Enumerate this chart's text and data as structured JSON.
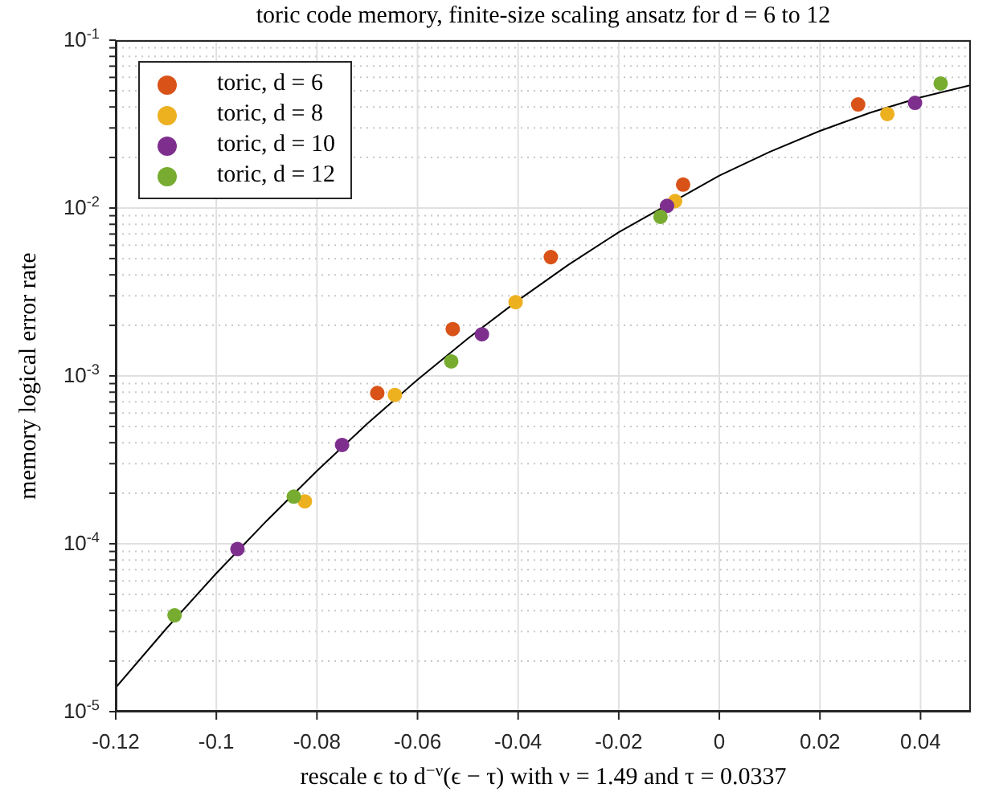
{
  "chart_data": {
    "type": "scatter",
    "title": "toric code memory, finite-size scaling ansatz for d = 6 to 12",
    "xlabel": "rescale ϵ to d$^{−ν}$(ϵ − τ) with ν = 1.49 and τ = 0.0337",
    "ylabel": "memory logical error rate",
    "xlim": [
      -0.12,
      0.05
    ],
    "xticks": [
      -0.12,
      -0.1,
      -0.08,
      -0.06,
      -0.04,
      -0.02,
      0,
      0.02,
      0.04
    ],
    "ylim": [
      1e-05,
      0.1
    ],
    "log": "y",
    "yticks": [
      {
        "value": 1e-05,
        "label": "10$^{-5}$"
      },
      {
        "value": 2e-05,
        "label": null
      },
      {
        "value": 3e-05,
        "label": null
      },
      {
        "value": 4e-05,
        "label": null
      },
      {
        "value": 5e-05,
        "label": null
      },
      {
        "value": 6e-05,
        "label": null
      },
      {
        "value": 7e-05,
        "label": null
      },
      {
        "value": 8e-05,
        "label": null
      },
      {
        "value": 9e-05,
        "label": null
      },
      {
        "value": 0.0001,
        "label": "10$^{-4}$"
      },
      {
        "value": 0.0002,
        "label": null
      },
      {
        "value": 0.0003,
        "label": null
      },
      {
        "value": 0.0004,
        "label": null
      },
      {
        "value": 0.0005,
        "label": null
      },
      {
        "value": 0.0006,
        "label": null
      },
      {
        "value": 0.0007,
        "label": null
      },
      {
        "value": 0.0008,
        "label": null
      },
      {
        "value": 0.0009,
        "label": null
      },
      {
        "value": 0.001,
        "label": "10$^{-3}$"
      },
      {
        "value": 0.002,
        "label": null
      },
      {
        "value": 0.003,
        "label": null
      },
      {
        "value": 0.004,
        "label": null
      },
      {
        "value": 0.005,
        "label": null
      },
      {
        "value": 0.006,
        "label": null
      },
      {
        "value": 0.007,
        "label": null
      },
      {
        "value": 0.008,
        "label": null
      },
      {
        "value": 0.009,
        "label": null
      },
      {
        "value": 0.01,
        "label": "10$^{-2}$"
      },
      {
        "value": 0.02,
        "label": null
      },
      {
        "value": 0.03,
        "label": null
      },
      {
        "value": 0.04,
        "label": null
      },
      {
        "value": 0.05,
        "label": null
      },
      {
        "value": 0.06,
        "label": null
      },
      {
        "value": 0.07,
        "label": null
      },
      {
        "value": 0.08,
        "label": null
      },
      {
        "value": 0.09,
        "label": null
      },
      {
        "value": 0.1,
        "label": "10$^{-1}$"
      }
    ],
    "grid": true,
    "legend": "top left",
    "marker": "circle",
    "series": [
      {
        "name": "toric, d = 6",
        "color": "#d95319",
        "x": [
          -0.068,
          -0.053,
          -0.0335,
          -0.0072,
          0.0276
        ],
        "values": [
          0.00079,
          0.0019,
          0.0051,
          0.0138,
          0.0414
        ]
      },
      {
        "name": "toric, d = 8",
        "color": "#edb120",
        "x": [
          -0.0824,
          -0.0645,
          -0.0405,
          -0.0088,
          0.0334
        ],
        "values": [
          0.000179,
          0.00077,
          0.00275,
          0.011,
          0.0363
        ]
      },
      {
        "name": "toric, d = 10",
        "color": "#7e2f8e",
        "x": [
          -0.0958,
          -0.075,
          -0.0472,
          -0.0104,
          0.0389
        ],
        "values": [
          9.3e-05,
          0.000388,
          0.00177,
          0.0103,
          0.0423
        ]
      },
      {
        "name": "toric, d = 12",
        "color": "#77ac30",
        "x": [
          -0.1083,
          -0.0846,
          -0.0533,
          -0.0117,
          0.044
        ],
        "values": [
          3.75e-05,
          0.000191,
          0.00122,
          0.00886,
          0.0552
        ]
      },
      {
        "type": "line",
        "color": "#000000",
        "marker": "none",
        "line_style": "solid",
        "x": [
          -0.12,
          -0.11,
          -0.1,
          -0.09,
          -0.08,
          -0.07,
          -0.06,
          -0.05,
          -0.04,
          -0.03,
          -0.02,
          0,
          0.01,
          0.02,
          0.03,
          0.04,
          0.05
        ],
        "values": [
          1.39e-05,
          3.11e-05,
          6.67e-05,
          0.000137,
          0.000272,
          0.000519,
          0.00095,
          0.00167,
          0.00282,
          0.00459,
          0.00718,
          0.0156,
          0.0216,
          0.0288,
          0.037,
          0.0456,
          0.054
        ]
      }
    ]
  }
}
